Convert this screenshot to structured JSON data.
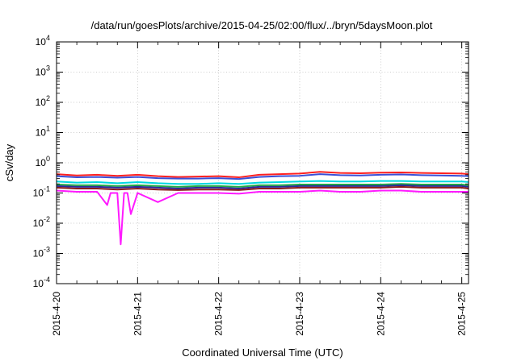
{
  "chart_data": {
    "type": "line",
    "title": "/data/run/goesPlots/archive/2015-04-25/02:00/flux/../bryn/5daysMoon.plot",
    "xlabel": "Coordinated Universal Time (UTC)",
    "ylabel": "cSv/day",
    "y_scale": "log",
    "ylim": [
      0.0001,
      10000
    ],
    "xlim": [
      "2015-04-20 00:00",
      "2015-04-25 02:00"
    ],
    "x_ticks": [
      "2015-4-20",
      "2015-4-21",
      "2015-4-22",
      "2015-4-23",
      "2015-4-24",
      "2015-4-25"
    ],
    "y_ticks": [
      {
        "value": 0.0001,
        "base": "10",
        "exp": "-4"
      },
      {
        "value": 0.001,
        "base": "10",
        "exp": "-3"
      },
      {
        "value": 0.01,
        "base": "10",
        "exp": "-2"
      },
      {
        "value": 0.1,
        "base": "10",
        "exp": "-1"
      },
      {
        "value": 1,
        "base": "10",
        "exp": "0"
      },
      {
        "value": 10,
        "base": "10",
        "exp": "1"
      },
      {
        "value": 100,
        "base": "10",
        "exp": "2"
      },
      {
        "value": 1000,
        "base": "10",
        "exp": "3"
      },
      {
        "value": 10000,
        "base": "10",
        "exp": "4"
      }
    ],
    "grid": true,
    "legend": "none",
    "series": [
      {
        "color": "#ff2020",
        "x": [
          "2015-04-20 00:00",
          "2015-04-20 06:00",
          "2015-04-20 12:00",
          "2015-04-20 18:00",
          "2015-04-21 00:00",
          "2015-04-21 06:00",
          "2015-04-21 12:00",
          "2015-04-21 18:00",
          "2015-04-22 00:00",
          "2015-04-22 06:00",
          "2015-04-22 12:00",
          "2015-04-22 18:00",
          "2015-04-23 00:00",
          "2015-04-23 06:00",
          "2015-04-23 12:00",
          "2015-04-23 18:00",
          "2015-04-24 00:00",
          "2015-04-24 06:00",
          "2015-04-24 12:00",
          "2015-04-24 18:00",
          "2015-04-25 00:00",
          "2015-04-25 02:00"
        ],
        "y": [
          0.42,
          0.38,
          0.4,
          0.37,
          0.4,
          0.36,
          0.34,
          0.35,
          0.36,
          0.33,
          0.4,
          0.42,
          0.44,
          0.5,
          0.46,
          0.45,
          0.47,
          0.48,
          0.46,
          0.45,
          0.44,
          0.42
        ]
      },
      {
        "color": "#3a4fd8",
        "x": [
          "2015-04-20 00:00",
          "2015-04-20 06:00",
          "2015-04-20 12:00",
          "2015-04-20 18:00",
          "2015-04-21 00:00",
          "2015-04-21 06:00",
          "2015-04-21 12:00",
          "2015-04-21 18:00",
          "2015-04-22 00:00",
          "2015-04-22 06:00",
          "2015-04-22 12:00",
          "2015-04-22 18:00",
          "2015-04-23 00:00",
          "2015-04-23 06:00",
          "2015-04-23 12:00",
          "2015-04-23 18:00",
          "2015-04-24 00:00",
          "2015-04-24 06:00",
          "2015-04-24 12:00",
          "2015-04-24 18:00",
          "2015-04-25 00:00",
          "2015-04-25 02:00"
        ],
        "y": [
          0.36,
          0.33,
          0.34,
          0.32,
          0.34,
          0.31,
          0.3,
          0.3,
          0.31,
          0.29,
          0.34,
          0.36,
          0.37,
          0.42,
          0.39,
          0.38,
          0.4,
          0.41,
          0.39,
          0.38,
          0.37,
          0.36
        ]
      },
      {
        "color": "#00d8e0",
        "x": [
          "2015-04-20 00:00",
          "2015-04-20 06:00",
          "2015-04-20 12:00",
          "2015-04-20 18:00",
          "2015-04-21 00:00",
          "2015-04-21 06:00",
          "2015-04-21 12:00",
          "2015-04-21 18:00",
          "2015-04-22 00:00",
          "2015-04-22 06:00",
          "2015-04-22 12:00",
          "2015-04-22 18:00",
          "2015-04-23 00:00",
          "2015-04-23 06:00",
          "2015-04-23 12:00",
          "2015-04-23 18:00",
          "2015-04-24 00:00",
          "2015-04-24 06:00",
          "2015-04-24 12:00",
          "2015-04-24 18:00",
          "2015-04-25 00:00",
          "2015-04-25 02:00"
        ],
        "y": [
          0.24,
          0.22,
          0.23,
          0.21,
          0.23,
          0.21,
          0.2,
          0.2,
          0.21,
          0.2,
          0.22,
          0.23,
          0.24,
          0.25,
          0.24,
          0.24,
          0.25,
          0.25,
          0.24,
          0.24,
          0.24,
          0.23
        ]
      },
      {
        "color": "#22aa44",
        "x": [
          "2015-04-20 00:00",
          "2015-04-20 06:00",
          "2015-04-20 12:00",
          "2015-04-20 18:00",
          "2015-04-21 00:00",
          "2015-04-21 06:00",
          "2015-04-21 12:00",
          "2015-04-21 18:00",
          "2015-04-22 00:00",
          "2015-04-22 06:00",
          "2015-04-22 12:00",
          "2015-04-22 18:00",
          "2015-04-23 00:00",
          "2015-04-23 06:00",
          "2015-04-23 12:00",
          "2015-04-23 18:00",
          "2015-04-24 00:00",
          "2015-04-24 06:00",
          "2015-04-24 12:00",
          "2015-04-24 18:00",
          "2015-04-25 00:00",
          "2015-04-25 02:00"
        ],
        "y": [
          0.19,
          0.18,
          0.18,
          0.17,
          0.18,
          0.17,
          0.16,
          0.17,
          0.17,
          0.16,
          0.18,
          0.18,
          0.19,
          0.19,
          0.19,
          0.19,
          0.19,
          0.2,
          0.19,
          0.19,
          0.19,
          0.18
        ]
      },
      {
        "color": "#2a2a9a",
        "x": [
          "2015-04-20 00:00",
          "2015-04-20 06:00",
          "2015-04-20 12:00",
          "2015-04-20 18:00",
          "2015-04-21 00:00",
          "2015-04-21 06:00",
          "2015-04-21 12:00",
          "2015-04-21 18:00",
          "2015-04-22 00:00",
          "2015-04-22 06:00",
          "2015-04-22 12:00",
          "2015-04-22 18:00",
          "2015-04-23 00:00",
          "2015-04-23 06:00",
          "2015-04-23 12:00",
          "2015-04-23 18:00",
          "2015-04-24 00:00",
          "2015-04-24 06:00",
          "2015-04-24 12:00",
          "2015-04-24 18:00",
          "2015-04-25 00:00",
          "2015-04-25 02:00"
        ],
        "y": [
          0.17,
          0.16,
          0.16,
          0.15,
          0.16,
          0.15,
          0.14,
          0.15,
          0.15,
          0.14,
          0.16,
          0.16,
          0.17,
          0.17,
          0.17,
          0.17,
          0.17,
          0.18,
          0.17,
          0.17,
          0.17,
          0.16
        ]
      },
      {
        "color": "#8b1a1a",
        "x": [
          "2015-04-20 00:00",
          "2015-04-20 06:00",
          "2015-04-20 12:00",
          "2015-04-20 18:00",
          "2015-04-21 00:00",
          "2015-04-21 06:00",
          "2015-04-21 12:00",
          "2015-04-21 18:00",
          "2015-04-22 00:00",
          "2015-04-22 06:00",
          "2015-04-22 12:00",
          "2015-04-22 18:00",
          "2015-04-23 00:00",
          "2015-04-23 06:00",
          "2015-04-23 12:00",
          "2015-04-23 18:00",
          "2015-04-24 00:00",
          "2015-04-24 06:00",
          "2015-04-24 12:00",
          "2015-04-24 18:00",
          "2015-04-25 00:00",
          "2015-04-25 02:00"
        ],
        "y": [
          0.15,
          0.14,
          0.14,
          0.13,
          0.14,
          0.13,
          0.125,
          0.13,
          0.13,
          0.125,
          0.14,
          0.14,
          0.15,
          0.15,
          0.15,
          0.15,
          0.15,
          0.16,
          0.15,
          0.15,
          0.15,
          0.14
        ]
      },
      {
        "color": "#ff1aff",
        "x": [
          "2015-04-20 00:00",
          "2015-04-20 06:00",
          "2015-04-20 12:00",
          "2015-04-20 15:00",
          "2015-04-20 16:00",
          "2015-04-20 18:00",
          "2015-04-20 19:00",
          "2015-04-20 20:00",
          "2015-04-20 21:00",
          "2015-04-20 22:00",
          "2015-04-21 00:00",
          "2015-04-21 06:00",
          "2015-04-21 12:00",
          "2015-04-21 18:00",
          "2015-04-22 00:00",
          "2015-04-22 06:00",
          "2015-04-22 12:00",
          "2015-04-22 18:00",
          "2015-04-23 00:00",
          "2015-04-23 06:00",
          "2015-04-23 12:00",
          "2015-04-23 18:00",
          "2015-04-24 00:00",
          "2015-04-24 06:00",
          "2015-04-24 12:00",
          "2015-04-24 18:00",
          "2015-04-25 00:00",
          "2015-04-25 02:00"
        ],
        "y": [
          0.12,
          0.11,
          0.11,
          0.04,
          0.1,
          0.1,
          0.002,
          0.1,
          0.1,
          0.02,
          0.1,
          0.05,
          0.1,
          0.1,
          0.1,
          0.095,
          0.11,
          0.11,
          0.11,
          0.12,
          0.11,
          0.11,
          0.12,
          0.12,
          0.11,
          0.11,
          0.11,
          0.11
        ]
      }
    ]
  }
}
